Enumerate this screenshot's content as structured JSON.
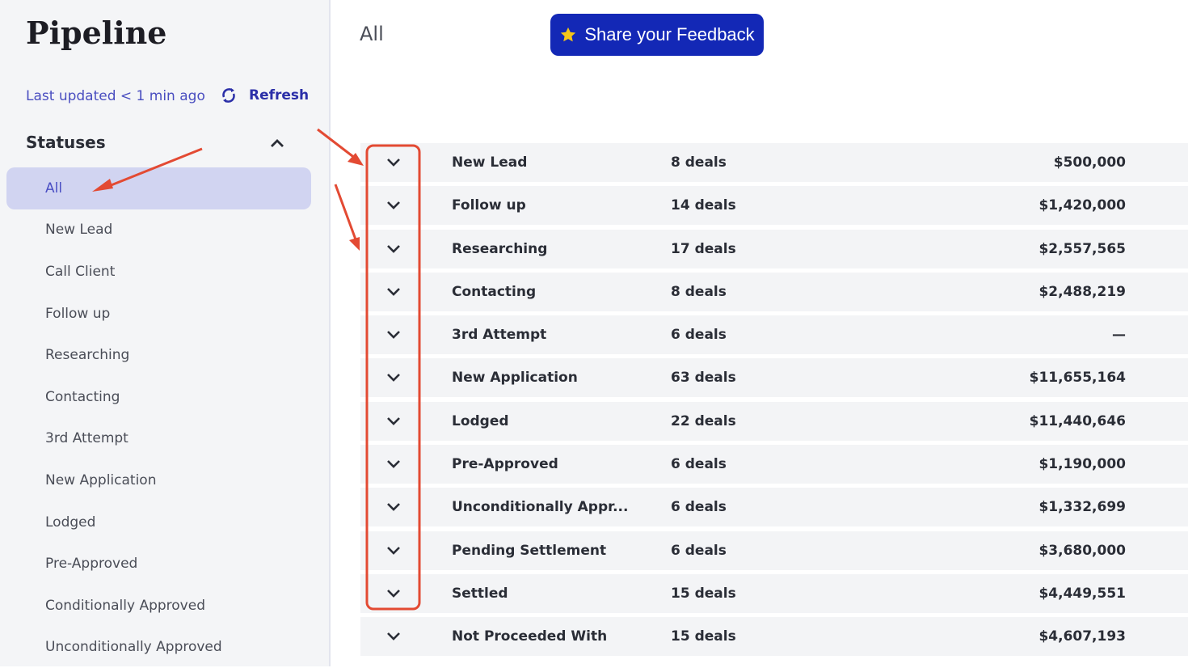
{
  "sidebar": {
    "title": "Pipeline",
    "last_updated": "Last updated < 1 min ago",
    "refresh_label": "Refresh",
    "statuses_label": "Statuses",
    "items": [
      {
        "label": "All",
        "active": true
      },
      {
        "label": "New Lead"
      },
      {
        "label": "Call Client"
      },
      {
        "label": "Follow up"
      },
      {
        "label": "Researching"
      },
      {
        "label": "Contacting"
      },
      {
        "label": "3rd Attempt"
      },
      {
        "label": "New Application"
      },
      {
        "label": "Lodged"
      },
      {
        "label": "Pre-Approved"
      },
      {
        "label": "Conditionally Approved"
      },
      {
        "label": "Unconditionally Approved"
      }
    ]
  },
  "main": {
    "title": "All",
    "feedback_label": "Share your Feedback",
    "rows": [
      {
        "name": "New Lead",
        "count": "8 deals",
        "amount": "$500,000"
      },
      {
        "name": "Follow up",
        "count": "14 deals",
        "amount": "$1,420,000"
      },
      {
        "name": "Researching",
        "count": "17 deals",
        "amount": "$2,557,565"
      },
      {
        "name": "Contacting",
        "count": "8 deals",
        "amount": "$2,488,219"
      },
      {
        "name": "3rd Attempt",
        "count": "6 deals",
        "amount": "—"
      },
      {
        "name": "New Application",
        "count": "63 deals",
        "amount": "$11,655,164"
      },
      {
        "name": "Lodged",
        "count": "22 deals",
        "amount": "$11,440,646"
      },
      {
        "name": "Pre-Approved",
        "count": "6 deals",
        "amount": "$1,190,000"
      },
      {
        "name": "Unconditionally Appr...",
        "count": "6 deals",
        "amount": "$1,332,699"
      },
      {
        "name": "Pending Settlement",
        "count": "6 deals",
        "amount": "$3,680,000"
      },
      {
        "name": "Settled",
        "count": "15 deals",
        "amount": "$4,449,551"
      },
      {
        "name": "Not Proceeded With",
        "count": "15 deals",
        "amount": "$4,607,193"
      }
    ]
  },
  "colors": {
    "accent": "#1328b6",
    "active_bg": "#d1d4f1",
    "annotation": "#e34a33",
    "star": "#f5c518"
  }
}
